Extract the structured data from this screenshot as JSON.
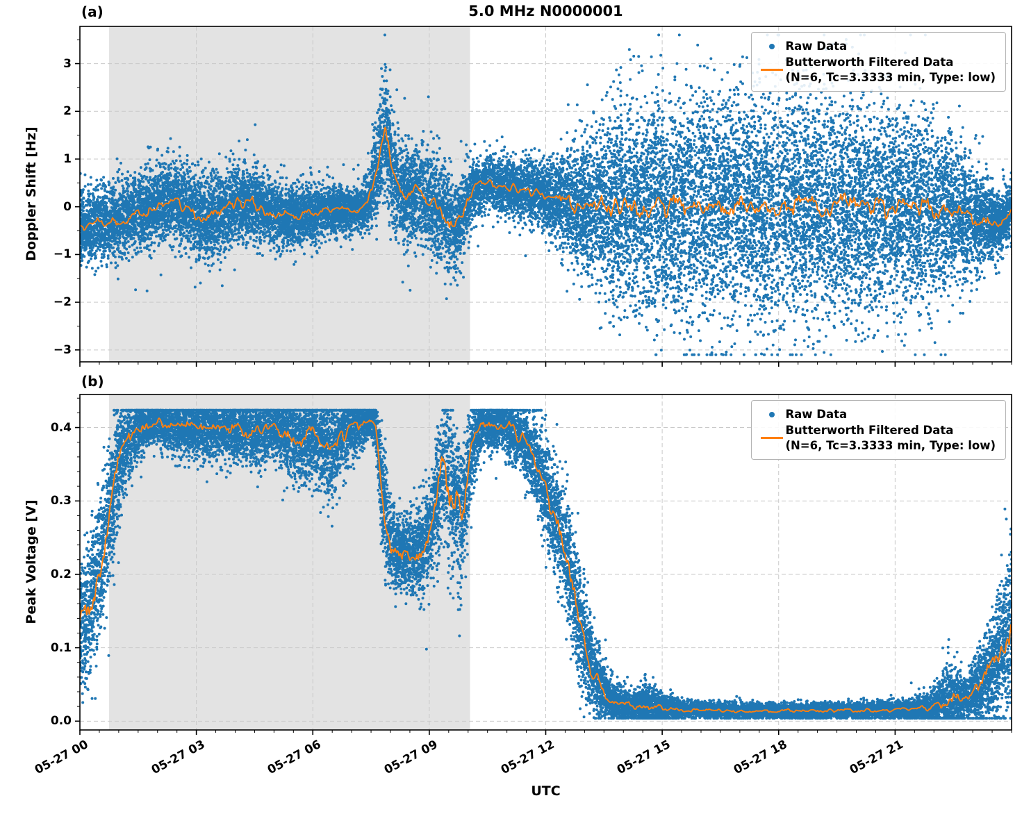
{
  "title": "5.0 MHz N0000001",
  "xlabel": "UTC",
  "panels": [
    {
      "label": "(a)",
      "ylabel": "Doppler Shift [Hz]"
    },
    {
      "label": "(b)",
      "ylabel": "Peak Voltage [V]"
    }
  ],
  "legend": {
    "raw_label": "Raw Data",
    "filtered_label": "Butterworth Filtered Data",
    "filtered_sub": "(N=6, Tc=3.3333 min, Type: low)"
  },
  "colors": {
    "raw": "#1f77b4",
    "filtered": "#ff7f0e",
    "shaded_band": "#e3e3e3",
    "grid": "#c9c9c9",
    "frame": "#000000",
    "background": "#ffffff"
  },
  "chart_data": [
    {
      "type": "scatter",
      "panel": "a",
      "title": "5.0 MHz N0000001",
      "ylabel": "Doppler Shift [Hz]",
      "xlabel": "UTC",
      "x_axis": "time UTC on 05-27, hours 0-24",
      "xlim": [
        0,
        24
      ],
      "ylim": [
        -3.25,
        3.78
      ],
      "yticks": [
        -3,
        -2,
        -1,
        0,
        1,
        2,
        3
      ],
      "ytick_labels": [
        "−3",
        "−2",
        "−1",
        "0",
        "1",
        "2",
        "3"
      ],
      "y_minor_step": 0.5,
      "xticks": [
        0,
        3,
        6,
        9,
        12,
        15,
        18,
        21
      ],
      "xtick_labels": [
        "05-27 00",
        "05-27 03",
        "05-27 06",
        "05-27 09",
        "05-27 12",
        "05-27 15",
        "05-27 18",
        "05-27 21"
      ],
      "x_minor_step": 0.5,
      "grid": true,
      "legend_position": "upper right",
      "shaded_region": [
        0.75,
        10.05
      ],
      "series": [
        {
          "name": "Raw Data",
          "type": "scatter",
          "color": "#1f77b4",
          "n_points": 22000,
          "seed": 7,
          "tail_p": 0.015,
          "tail_mult": 1.8,
          "clamp": [
            -3.1,
            3.6
          ],
          "envelope_t_mean_sigma": [
            [
              0,
              -0.45,
              0.35
            ],
            [
              0.5,
              -0.35,
              0.35
            ],
            [
              1,
              -0.3,
              0.38
            ],
            [
              1.5,
              -0.15,
              0.4
            ],
            [
              2,
              0.05,
              0.4
            ],
            [
              2.4,
              0.15,
              0.38
            ],
            [
              2.8,
              -0.05,
              0.42
            ],
            [
              3.2,
              -0.25,
              0.45
            ],
            [
              3.6,
              -0.15,
              0.42
            ],
            [
              4,
              0.05,
              0.4
            ],
            [
              4.4,
              0.1,
              0.38
            ],
            [
              4.8,
              -0.1,
              0.36
            ],
            [
              5.2,
              -0.2,
              0.33
            ],
            [
              5.6,
              -0.18,
              0.3
            ],
            [
              6,
              -0.15,
              0.28
            ],
            [
              6.5,
              -0.05,
              0.25
            ],
            [
              7,
              -0.1,
              0.24
            ],
            [
              7.4,
              0.05,
              0.28
            ],
            [
              7.65,
              0.8,
              0.5
            ],
            [
              7.85,
              1.6,
              0.65
            ],
            [
              8.05,
              0.7,
              0.55
            ],
            [
              8.3,
              0.25,
              0.5
            ],
            [
              8.7,
              0.3,
              0.5
            ],
            [
              9,
              0.15,
              0.5
            ],
            [
              9.35,
              -0.1,
              0.5
            ],
            [
              9.65,
              -0.45,
              0.5
            ],
            [
              9.85,
              -0.2,
              0.4
            ],
            [
              10.1,
              0.35,
              0.3
            ],
            [
              10.5,
              0.5,
              0.28
            ],
            [
              11,
              0.42,
              0.3
            ],
            [
              11.5,
              0.35,
              0.3
            ],
            [
              12,
              0.2,
              0.35
            ],
            [
              12.5,
              0.1,
              0.5
            ],
            [
              13,
              0,
              0.7
            ],
            [
              13.5,
              -0.05,
              0.9
            ],
            [
              14,
              0,
              1
            ],
            [
              15,
              0,
              1.1
            ],
            [
              16,
              0,
              1.15
            ],
            [
              17,
              0.05,
              1.15
            ],
            [
              18,
              0,
              1.18
            ],
            [
              19,
              0,
              1.15
            ],
            [
              20,
              0.05,
              1.12
            ],
            [
              21,
              0,
              1.05
            ],
            [
              22,
              -0.05,
              0.95
            ],
            [
              22.8,
              -0.15,
              0.7
            ],
            [
              23.3,
              -0.3,
              0.45
            ],
            [
              23.7,
              -0.35,
              0.3
            ],
            [
              24,
              -0.1,
              0.3
            ]
          ]
        },
        {
          "name": "Butterworth Filtered Data (N=6, Tc=3.3333 min, Type: low)",
          "type": "line",
          "color": "#ff7f0e",
          "seed": 107,
          "follows_envelope_of": "Raw Data",
          "wiggle_sigma_scale": 0.42,
          "wiggle_cap": 0.28,
          "clamp": [
            -3.0,
            3.5
          ]
        }
      ]
    },
    {
      "type": "scatter",
      "panel": "b",
      "title": "",
      "ylabel": "Peak Voltage [V]",
      "xlabel": "UTC",
      "x_axis": "time UTC on 05-27, hours 0-24",
      "xlim": [
        0,
        24
      ],
      "ylim": [
        -0.012,
        0.445
      ],
      "yticks": [
        0,
        0.1,
        0.2,
        0.3,
        0.4
      ],
      "ytick_labels": [
        "0.0",
        "0.1",
        "0.2",
        "0.3",
        "0.4"
      ],
      "y_minor_step": 0.02,
      "xticks": [
        0,
        3,
        6,
        9,
        12,
        15,
        18,
        21
      ],
      "xtick_labels": [
        "05-27 00",
        "05-27 03",
        "05-27 06",
        "05-27 09",
        "05-27 12",
        "05-27 15",
        "05-27 18",
        "05-27 21"
      ],
      "x_minor_step": 0.5,
      "grid": true,
      "legend_position": "upper right",
      "shaded_region": [
        0.75,
        10.05
      ],
      "series": [
        {
          "name": "Raw Data",
          "type": "scatter",
          "color": "#1f77b4",
          "n_points": 22000,
          "seed": 13,
          "tail_p": 0.01,
          "tail_mult": 1.6,
          "clamp": [
            0.004,
            0.4235
          ],
          "envelope_t_mean_sigma": [
            [
              0,
              0.13,
              0.05
            ],
            [
              0.3,
              0.16,
              0.05
            ],
            [
              0.6,
              0.23,
              0.05
            ],
            [
              0.9,
              0.33,
              0.045
            ],
            [
              1.2,
              0.38,
              0.03
            ],
            [
              1.5,
              0.4,
              0.02
            ],
            [
              2,
              0.405,
              0.015
            ],
            [
              2.5,
              0.4,
              0.018
            ],
            [
              3,
              0.4,
              0.02
            ],
            [
              3.5,
              0.398,
              0.02
            ],
            [
              4,
              0.4,
              0.02
            ],
            [
              4.5,
              0.395,
              0.025
            ],
            [
              5,
              0.4,
              0.02
            ],
            [
              5.5,
              0.385,
              0.03
            ],
            [
              6,
              0.39,
              0.03
            ],
            [
              6.5,
              0.375,
              0.035
            ],
            [
              7,
              0.4,
              0.022
            ],
            [
              7.5,
              0.413,
              0.012
            ],
            [
              7.62,
              0.4,
              0.02
            ],
            [
              7.8,
              0.3,
              0.04
            ],
            [
              8,
              0.24,
              0.03
            ],
            [
              8.4,
              0.225,
              0.028
            ],
            [
              8.8,
              0.235,
              0.03
            ],
            [
              9.1,
              0.27,
              0.035
            ],
            [
              9.35,
              0.35,
              0.05
            ],
            [
              9.6,
              0.31,
              0.05
            ],
            [
              9.85,
              0.28,
              0.05
            ],
            [
              10.1,
              0.37,
              0.03
            ],
            [
              10.35,
              0.405,
              0.018
            ],
            [
              10.9,
              0.405,
              0.018
            ],
            [
              11.3,
              0.39,
              0.02
            ],
            [
              11.7,
              0.36,
              0.03
            ],
            [
              12,
              0.315,
              0.035
            ],
            [
              12.3,
              0.27,
              0.035
            ],
            [
              12.6,
              0.21,
              0.04
            ],
            [
              12.9,
              0.13,
              0.04
            ],
            [
              13.2,
              0.07,
              0.03
            ],
            [
              13.5,
              0.04,
              0.02
            ],
            [
              13.8,
              0.025,
              0.012
            ],
            [
              14.2,
              0.02,
              0.01
            ],
            [
              14.7,
              0.02,
              0.014
            ],
            [
              15.1,
              0.017,
              0.01
            ],
            [
              15.5,
              0.015,
              0.006
            ],
            [
              16,
              0.015,
              0.005
            ],
            [
              17,
              0.014,
              0.005
            ],
            [
              18,
              0.014,
              0.005
            ],
            [
              19,
              0.014,
              0.005
            ],
            [
              20,
              0.015,
              0.005
            ],
            [
              21,
              0.015,
              0.006
            ],
            [
              21.8,
              0.017,
              0.008
            ],
            [
              22.4,
              0.028,
              0.028
            ],
            [
              22.8,
              0.03,
              0.015
            ],
            [
              23.2,
              0.05,
              0.025
            ],
            [
              23.6,
              0.08,
              0.04
            ],
            [
              24,
              0.13,
              0.06
            ]
          ]
        },
        {
          "name": "Butterworth Filtered Data (N=6, Tc=3.3333 min, Type: low)",
          "type": "line",
          "color": "#ff7f0e",
          "seed": 113,
          "follows_envelope_of": "Raw Data",
          "wiggle_sigma_scale": 0.6,
          "wiggle_cap": 0.05,
          "clamp": [
            0.008,
            0.42
          ]
        }
      ]
    }
  ]
}
